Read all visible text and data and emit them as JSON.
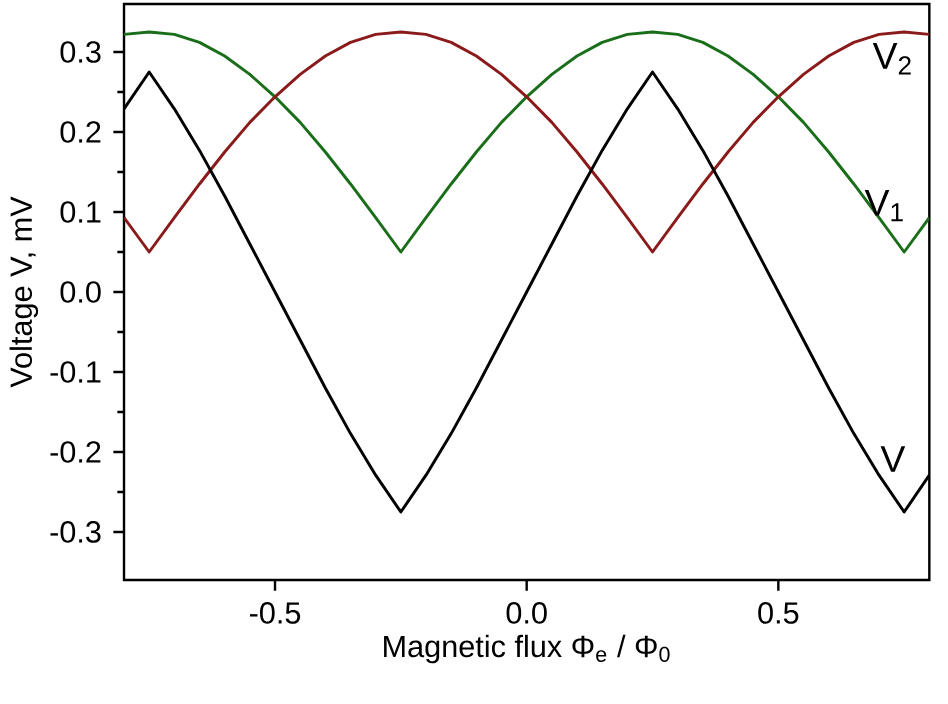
{
  "chart_data": {
    "type": "line",
    "xlabel": "Magnetic flux Φ$_{e}$ / Φ$_{0}$",
    "ylabel": "Voltage V, mV",
    "x": [
      -0.8,
      -0.75,
      -0.7,
      -0.65,
      -0.6,
      -0.55,
      -0.5,
      -0.45,
      -0.4,
      -0.35,
      -0.3,
      -0.25,
      -0.2,
      -0.15,
      -0.1,
      -0.05,
      0,
      0.05,
      0.1,
      0.15,
      0.2,
      0.25,
      0.3,
      0.35,
      0.4,
      0.45,
      0.5,
      0.55,
      0.6,
      0.65,
      0.7,
      0.75,
      0.8
    ],
    "series": [
      {
        "name": "V$_{1}$",
        "color": "#1a6e1a",
        "values": [
          0.322,
          0.325,
          0.322,
          0.312,
          0.295,
          0.272,
          0.244,
          0.212,
          0.175,
          0.135,
          0.093,
          0.05,
          0.093,
          0.135,
          0.175,
          0.212,
          0.244,
          0.272,
          0.295,
          0.312,
          0.322,
          0.325,
          0.322,
          0.312,
          0.295,
          0.272,
          0.244,
          0.212,
          0.175,
          0.135,
          0.093,
          0.05,
          0.093
        ]
      },
      {
        "name": "V$_{2}$",
        "color": "#8b1a1a",
        "values": [
          0.093,
          0.05,
          0.093,
          0.135,
          0.175,
          0.212,
          0.244,
          0.272,
          0.295,
          0.312,
          0.322,
          0.325,
          0.322,
          0.312,
          0.295,
          0.272,
          0.244,
          0.212,
          0.175,
          0.135,
          0.093,
          0.05,
          0.093,
          0.135,
          0.175,
          0.212,
          0.244,
          0.272,
          0.295,
          0.312,
          0.322,
          0.325,
          0.322
        ]
      },
      {
        "name": "V",
        "color": "#000000",
        "values": [
          0.229,
          0.275,
          0.229,
          0.177,
          0.12,
          0.06,
          0,
          -0.06,
          -0.12,
          -0.177,
          -0.229,
          -0.275,
          -0.229,
          -0.177,
          -0.12,
          -0.06,
          0,
          0.06,
          0.12,
          0.177,
          0.229,
          0.275,
          0.229,
          0.177,
          0.12,
          0.06,
          0,
          -0.06,
          -0.12,
          -0.177,
          -0.229,
          -0.275,
          -0.229
        ]
      }
    ],
    "xlim": [
      -0.8,
      0.8
    ],
    "ylim": [
      -0.36,
      0.36
    ],
    "xticks": [
      -0.5,
      {
        "value": 0,
        "label": "0.0"
      },
      0.5
    ],
    "yticks": [
      -0.3,
      -0.2,
      -0.1,
      {
        "value": 0,
        "label": "0.0"
      },
      0.1,
      0.2,
      0.3
    ],
    "grid": false,
    "legend": false,
    "marker": "none",
    "line_style": "solid"
  }
}
